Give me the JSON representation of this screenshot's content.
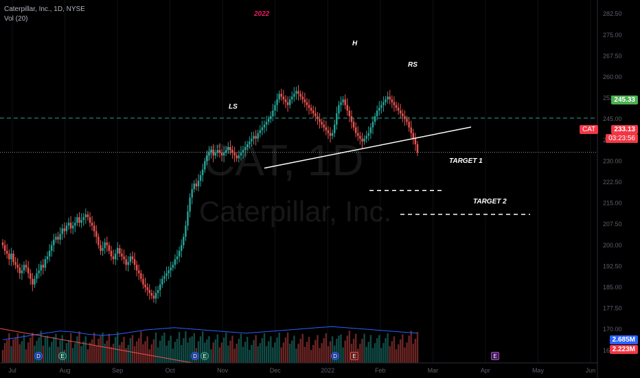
{
  "header": {
    "symbol_line": "Caterpillar, Inc., 1D, NYSE",
    "volume_line": "Vol (20)"
  },
  "watermark": {
    "ticker": "CAT, 1D",
    "company": "Caterpillar, Inc."
  },
  "annotations": {
    "year": "2022",
    "left_shoulder": "LS",
    "head": "H",
    "right_shoulder": "RS",
    "target1": "TARGET 1",
    "target2": "TARGET 2"
  },
  "price_scale": {
    "symbol": "CAT",
    "last_price": "233.13",
    "countdown": "03:23:56",
    "level_price": "245.33",
    "volume_last": "2.685M",
    "volume_ma": "2.223M"
  },
  "events": [
    {
      "kind": "dividend",
      "label": "D"
    },
    {
      "kind": "earnings",
      "label": "E"
    },
    {
      "kind": "dividend",
      "label": "D"
    },
    {
      "kind": "earnings",
      "label": "E"
    },
    {
      "kind": "dividend",
      "label": "D"
    },
    {
      "kind": "earnings",
      "label": "E"
    },
    {
      "kind": "earnings-upcoming",
      "label": "E"
    }
  ],
  "colors": {
    "up": "#26a69a",
    "down": "#ef5350",
    "level_line": "#26a69a",
    "last_price_line": "#9598a1",
    "volume_ma": "#2962ff",
    "level_tag": "#4caf50",
    "last_tag": "#f23645",
    "vol_tag": "#2962ff",
    "volma_tag": "#f23645"
  },
  "chart_data": {
    "type": "candlestick",
    "title": "Caterpillar, Inc., 1D, NYSE",
    "x_axis": [
      "Jul",
      "Aug",
      "Sep",
      "Oct",
      "Nov",
      "Dec",
      "2022",
      "Feb",
      "Mar",
      "Apr",
      "May",
      "Jun"
    ],
    "y_axis_ticks": [
      162.5,
      170.0,
      177.5,
      185.0,
      192.5,
      200.0,
      207.5,
      215.0,
      222.5,
      230.0,
      237.5,
      245.0,
      252.5,
      260.0,
      267.5,
      275.0,
      282.5
    ],
    "y_range": [
      160,
      285
    ],
    "levels": {
      "resistance": 245.33,
      "last": 233.13,
      "target1": 219.5,
      "target2": 211.0
    },
    "neckline": [
      {
        "date": "Nov 8",
        "price": 227.5
      },
      {
        "date": "Feb 1",
        "price": 236.0
      }
    ],
    "closes": [
      200,
      198,
      197,
      195,
      197,
      194,
      193,
      192,
      190,
      191,
      193,
      192,
      190,
      188,
      186,
      188,
      190,
      191,
      193,
      192,
      195,
      196,
      198,
      200,
      202,
      203,
      202,
      204,
      206,
      205,
      207,
      208,
      206,
      207,
      208,
      210,
      208,
      209,
      210,
      211,
      210,
      208,
      207,
      205,
      203,
      200,
      198,
      199,
      201,
      200,
      198,
      196,
      195,
      197,
      199,
      197,
      196,
      195,
      193,
      194,
      196,
      195,
      193,
      191,
      190,
      188,
      186,
      185,
      184,
      183,
      182,
      181,
      183,
      184,
      186,
      188,
      189,
      190,
      191,
      192,
      193,
      195,
      196,
      198,
      200,
      203,
      207,
      212,
      217,
      220,
      222,
      221,
      223,
      225,
      227,
      230,
      232,
      233,
      234,
      232,
      233,
      234,
      233,
      232,
      233,
      234,
      235,
      234,
      233,
      232,
      231,
      232,
      233,
      234,
      235,
      236,
      237,
      238,
      239,
      238,
      240,
      241,
      242,
      243,
      244,
      245,
      246,
      248,
      250,
      252,
      254,
      253,
      252,
      251,
      250,
      252,
      253,
      254,
      255,
      254,
      253,
      252,
      251,
      250,
      249,
      248,
      247,
      246,
      245,
      244,
      243,
      242,
      241,
      240,
      239,
      240,
      243,
      247,
      250,
      251,
      252,
      250,
      248,
      246,
      244,
      242,
      240,
      239,
      238,
      237,
      238,
      239,
      240,
      242,
      244,
      246,
      248,
      249,
      250,
      251,
      252,
      253,
      252,
      251,
      250,
      249,
      248,
      247,
      246,
      245,
      244,
      242,
      240,
      238,
      236,
      233
    ],
    "volume_ma_levels_m": [
      2.1,
      2.3,
      2.5,
      2.7,
      2.9,
      2.8,
      2.6,
      2.5,
      2.6,
      2.8,
      3.0,
      3.1,
      3.2,
      3.1,
      3.0,
      2.9,
      2.8,
      2.7,
      2.8,
      2.9,
      3.0,
      3.1,
      3.2,
      3.3,
      3.2,
      3.1,
      3.0,
      2.9,
      2.8,
      2.7
    ]
  }
}
